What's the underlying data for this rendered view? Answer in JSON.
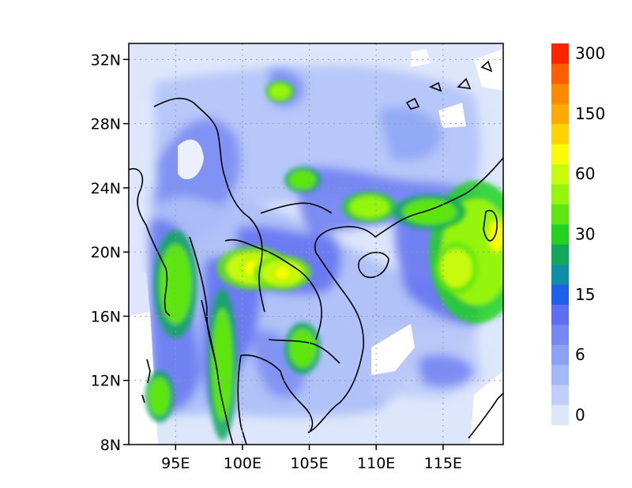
{
  "map": {
    "lat_ticks": [
      {
        "value": 32,
        "label": "32N"
      },
      {
        "value": 28,
        "label": "28N"
      },
      {
        "value": 24,
        "label": "24N"
      },
      {
        "value": 20,
        "label": "20N"
      },
      {
        "value": 16,
        "label": "16N"
      },
      {
        "value": 12,
        "label": "12N"
      },
      {
        "value": 8,
        "label": "8N"
      }
    ],
    "lon_ticks": [
      {
        "value": 95,
        "label": "95E"
      },
      {
        "value": 100,
        "label": "100E"
      },
      {
        "value": 105,
        "label": "105E"
      },
      {
        "value": 110,
        "label": "110E"
      },
      {
        "value": 115,
        "label": "115E"
      }
    ],
    "lat_range": [
      8,
      33
    ],
    "lon_range": [
      91.5,
      119.5
    ],
    "grid": "dotted",
    "background_color": "#dde6fb",
    "missing_color": "#ffffff",
    "coastline_color": "#000000",
    "coastlines": "country borders and coastlines of Southeast Asia"
  },
  "colorbar": {
    "placement": "right",
    "colors": [
      "#dce6fb",
      "#c0cffa",
      "#a3b8f8",
      "#8aa2f5",
      "#7788f2",
      "#5f6ef0",
      "#1f5ff0",
      "#0e8fa8",
      "#11a85a",
      "#21d31f",
      "#5de60f",
      "#95f50a",
      "#c8fa0c",
      "#fcfb06",
      "#fed400",
      "#ffaa00",
      "#ff8a00",
      "#ff5e00",
      "#ff2400"
    ],
    "labels": [
      {
        "text": "0",
        "level": 0
      },
      {
        "text": "6",
        "level": 3
      },
      {
        "text": "15",
        "level": 6
      },
      {
        "text": "30",
        "level": 9
      },
      {
        "text": "60",
        "level": 12
      },
      {
        "text": "150",
        "level": 15
      },
      {
        "text": "300",
        "level": 18
      }
    ]
  },
  "chart_data": {
    "type": "heatmap",
    "x_axis": "longitude",
    "y_axis": "latitude",
    "xlim": [
      91.5,
      119.5
    ],
    "ylim": [
      8,
      33
    ],
    "x_tick_labels": [
      "95E",
      "100E",
      "105E",
      "110E",
      "115E"
    ],
    "y_tick_labels": [
      "8N",
      "12N",
      "16N",
      "20N",
      "24N",
      "28N",
      "32N"
    ],
    "legend": "colorbar-right",
    "scale_labels": [
      "0",
      "6",
      "15",
      "30",
      "60",
      "150",
      "300"
    ],
    "regions": [
      {
        "lon": 117.5,
        "lat": 20.0,
        "rx": 2.6,
        "ry": 3.3,
        "level": 11
      },
      {
        "lon": 116.0,
        "lat": 19.0,
        "rx": 1.2,
        "ry": 1.2,
        "level": 12
      },
      {
        "lon": 119.0,
        "lat": 21.0,
        "rx": 0.6,
        "ry": 1.0,
        "level": 13
      },
      {
        "lon": 100.8,
        "lat": 19.0,
        "rx": 2.0,
        "ry": 1.0,
        "level": 12
      },
      {
        "lon": 100.8,
        "lat": 19.0,
        "rx": 0.7,
        "ry": 0.5,
        "level": 13
      },
      {
        "lon": 103.0,
        "lat": 18.7,
        "rx": 1.6,
        "ry": 0.8,
        "level": 12
      },
      {
        "lon": 103.0,
        "lat": 18.7,
        "rx": 0.6,
        "ry": 0.4,
        "level": 13
      },
      {
        "lon": 95.0,
        "lat": 18.0,
        "rx": 1.2,
        "ry": 2.5,
        "level": 10
      },
      {
        "lon": 98.5,
        "lat": 13.0,
        "rx": 0.8,
        "ry": 3.5,
        "level": 10
      },
      {
        "lon": 109.5,
        "lat": 22.8,
        "rx": 1.5,
        "ry": 0.7,
        "level": 11
      },
      {
        "lon": 114.0,
        "lat": 22.5,
        "rx": 2.0,
        "ry": 0.8,
        "level": 10
      },
      {
        "lon": 102.8,
        "lat": 30.0,
        "rx": 0.8,
        "ry": 0.5,
        "level": 11
      },
      {
        "lon": 104.5,
        "lat": 24.5,
        "rx": 1.0,
        "ry": 0.6,
        "level": 10
      },
      {
        "lon": 104.5,
        "lat": 14.0,
        "rx": 1.0,
        "ry": 1.2,
        "level": 10
      },
      {
        "lon": 93.8,
        "lat": 11.0,
        "rx": 0.8,
        "ry": 1.2,
        "level": 10
      }
    ]
  }
}
